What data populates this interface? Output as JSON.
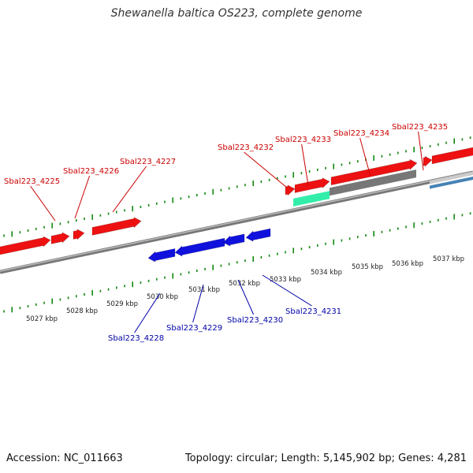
{
  "title": "Shewanella baltica OS223, complete genome",
  "footer": {
    "accession": "Accession: NC_011663",
    "summary": "Topology: circular; Length: 5,145,902 bp; Genes: 4,281"
  },
  "colors": {
    "forward_gene": "#ee1111",
    "reverse_gene": "#1111dd",
    "forward_label": "#cc0000",
    "reverse_label": "#0000aa",
    "tick": "#118811",
    "backbone": "#888888",
    "rrna_feature": "#33eeaa",
    "gray_feature": "#777777",
    "light_feature": "#cccccc",
    "steel_feature": "#4682b4"
  },
  "kbp_labels": [
    "5027 kbp",
    "5028 kbp",
    "5029 kbp",
    "5030 kbp",
    "5031 kbp",
    "5032 kbp",
    "5033 kbp",
    "5034 kbp",
    "5035 kbp",
    "5036 kbp",
    "5037 kbp"
  ],
  "forward_genes": [
    "Sbal223_4225",
    "Sbal223_4226",
    "Sbal223_4227",
    "Sbal223_4232",
    "Sbal223_4233",
    "Sbal223_4234",
    "Sbal223_4235"
  ],
  "reverse_genes": [
    "Sbal223_4228",
    "Sbal223_4229",
    "Sbal223_4230",
    "Sbal223_4231"
  ]
}
